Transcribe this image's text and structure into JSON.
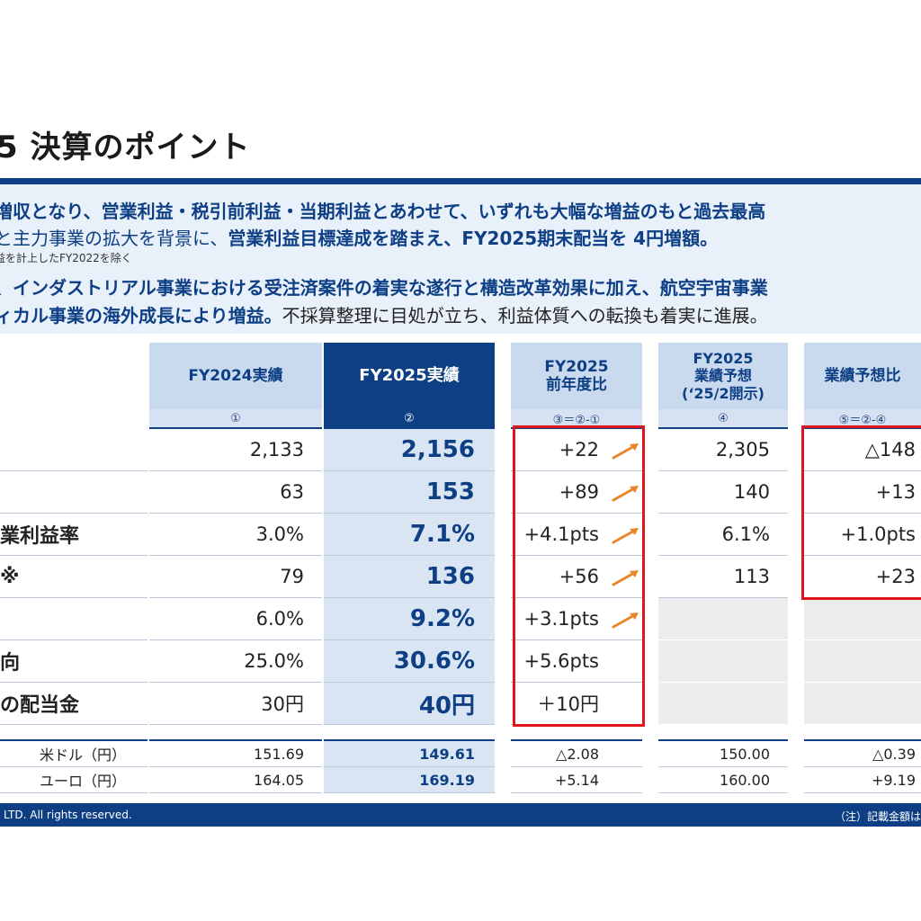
{
  "title": "5 決算のポイント",
  "summary": {
    "line1": "増収となり、営業利益・税引前利益・当期利益とあわせて、いずれも大幅な増益のもと過去最高",
    "line2_a": "と主力事業の拡大を背景に、",
    "line2_b": "営業利益目標達成を踏まえ、FY2025期末配当を 4円増額。",
    "note": "益を計上したFY2022を除く",
    "line3": "、インダストリアル事業における受注済案件の着実な遂行と構造改革効果に加え、航空宇宙事業",
    "line4_a": "ィカル事業の海外成長により増益。",
    "line4_b": "不採算整理に目処が立ち、利益体質への転換も着実に進展。"
  },
  "table": {
    "headers": {
      "fy2024": "FY2024実績",
      "fy2025": "FY2025実績",
      "yoy_l1": "FY2025",
      "yoy_l2": "前年度比",
      "fc_l1": "FY2025",
      "fc_l2": "業績予想",
      "fc_l3": "(‘25/2開示)",
      "vs": "業績予想比"
    },
    "subheaders": {
      "c1": "①",
      "c2": "②",
      "c3": "③＝②-①",
      "c4": "④",
      "c5": "⑤＝②-④"
    },
    "row_labels": [
      "",
      "",
      "業利益率",
      "※",
      "",
      "向",
      "の配当金"
    ],
    "fy2024": [
      "2,133",
      "63",
      "3.0%",
      "79",
      "6.0%",
      "25.0%",
      "30円"
    ],
    "fy2025": [
      "2,156",
      "153",
      "7.1%",
      "136",
      "9.2%",
      "30.6%",
      "40円"
    ],
    "yoy": [
      "+22",
      "+89",
      "+4.1pts",
      "+56",
      "+3.1pts",
      "+5.6pts",
      "＋10円"
    ],
    "forecast": [
      "2,305",
      "140",
      "6.1%",
      "113",
      "",
      "",
      ""
    ],
    "vs_forecast": [
      "△148",
      "+13",
      "+1.0pts",
      "+23",
      "",
      "",
      ""
    ]
  },
  "fx": {
    "labels": [
      "米ドル（円）",
      "ユーロ（円）"
    ],
    "fy2024": [
      "151.69",
      "164.05"
    ],
    "fy2025": [
      "149.61",
      "169.19"
    ],
    "yoy": [
      "△2.08",
      "+5.14"
    ],
    "forecast": [
      "150.00",
      "160.00"
    ],
    "vs_forecast": [
      "△0.39",
      "+9.19"
    ]
  },
  "footer": {
    "copyright": "LTD. All rights reserved.",
    "note": "（注）記載金額は"
  },
  "colors": {
    "navy": "#0e3f85",
    "light_blue": "#c9d9ee",
    "highlight_red": "#e0161f",
    "arrow_orange": "#e8862a"
  }
}
